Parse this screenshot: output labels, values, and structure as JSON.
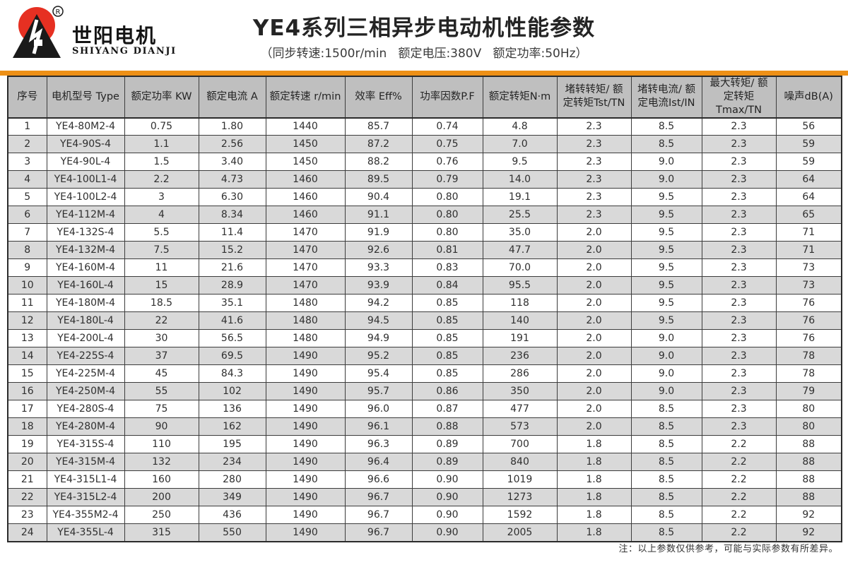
{
  "logo": {
    "cn": "世阳电机",
    "en": "SHIYANG DIANJI",
    "registered": "®"
  },
  "header": {
    "title": "YE4系列三相异步电动机性能参数",
    "subtitle": "（同步转速:1500r/min   额定电压:380V   额定功率:50Hz）"
  },
  "colors": {
    "accent_orange": "#ED9017",
    "logo_red": "#E63022",
    "logo_black": "#1a1a1a",
    "header_gray": "#BFBFBF",
    "stripe_gray": "#D9D9D9"
  },
  "table": {
    "headers": [
      "序号",
      "电机型号 Type",
      "额定功率 KW",
      "额定电流 A",
      "额定转速 r/min",
      "效率 Eff%",
      "功率因数P.F",
      "额定转矩N·m",
      "堵转转矩/ 额\n定转矩Tst/TN",
      "堵转电流/ 额\n定电流Ist/IN",
      "最大转矩/ 额\n定转矩Tmax/TN",
      "噪声dB(A)"
    ],
    "rows": [
      [
        "1",
        "YE4-80M2-4",
        "0.75",
        "1.80",
        "1440",
        "85.7",
        "0.74",
        "4.8",
        "2.3",
        "8.5",
        "2.3",
        "56"
      ],
      [
        "2",
        "YE4-90S-4",
        "1.1",
        "2.56",
        "1450",
        "87.2",
        "0.75",
        "7.0",
        "2.3",
        "8.5",
        "2.3",
        "59"
      ],
      [
        "3",
        "YE4-90L-4",
        "1.5",
        "3.40",
        "1450",
        "88.2",
        "0.76",
        "9.5",
        "2.3",
        "9.0",
        "2.3",
        "59"
      ],
      [
        "4",
        "YE4-100L1-4",
        "2.2",
        "4.73",
        "1460",
        "89.5",
        "0.79",
        "14.0",
        "2.3",
        "9.0",
        "2.3",
        "64"
      ],
      [
        "5",
        "YE4-100L2-4",
        "3",
        "6.30",
        "1460",
        "90.4",
        "0.80",
        "19.1",
        "2.3",
        "9.5",
        "2.3",
        "64"
      ],
      [
        "6",
        "YE4-112M-4",
        "4",
        "8.34",
        "1460",
        "91.1",
        "0.80",
        "25.5",
        "2.3",
        "9.5",
        "2.3",
        "65"
      ],
      [
        "7",
        "YE4-132S-4",
        "5.5",
        "11.4",
        "1470",
        "91.9",
        "0.80",
        "35.0",
        "2.0",
        "9.5",
        "2.3",
        "71"
      ],
      [
        "8",
        "YE4-132M-4",
        "7.5",
        "15.2",
        "1470",
        "92.6",
        "0.81",
        "47.7",
        "2.0",
        "9.5",
        "2.3",
        "71"
      ],
      [
        "9",
        "YE4-160M-4",
        "11",
        "21.6",
        "1470",
        "93.3",
        "0.83",
        "70.0",
        "2.0",
        "9.5",
        "2.3",
        "73"
      ],
      [
        "10",
        "YE4-160L-4",
        "15",
        "28.9",
        "1470",
        "93.9",
        "0.84",
        "95.5",
        "2.0",
        "9.5",
        "2.3",
        "73"
      ],
      [
        "11",
        "YE4-180M-4",
        "18.5",
        "35.1",
        "1480",
        "94.2",
        "0.85",
        "118",
        "2.0",
        "9.5",
        "2.3",
        "76"
      ],
      [
        "12",
        "YE4-180L-4",
        "22",
        "41.6",
        "1480",
        "94.5",
        "0.85",
        "140",
        "2.0",
        "9.5",
        "2.3",
        "76"
      ],
      [
        "13",
        "YE4-200L-4",
        "30",
        "56.5",
        "1480",
        "94.9",
        "0.85",
        "191",
        "2.0",
        "9.0",
        "2.3",
        "76"
      ],
      [
        "14",
        "YE4-225S-4",
        "37",
        "69.5",
        "1490",
        "95.2",
        "0.85",
        "236",
        "2.0",
        "9.0",
        "2.3",
        "78"
      ],
      [
        "15",
        "YE4-225M-4",
        "45",
        "84.3",
        "1490",
        "95.4",
        "0.85",
        "286",
        "2.0",
        "9.0",
        "2.3",
        "78"
      ],
      [
        "16",
        "YE4-250M-4",
        "55",
        "102",
        "1490",
        "95.7",
        "0.86",
        "350",
        "2.0",
        "9.0",
        "2.3",
        "79"
      ],
      [
        "17",
        "YE4-280S-4",
        "75",
        "136",
        "1490",
        "96.0",
        "0.87",
        "477",
        "2.0",
        "8.5",
        "2.3",
        "80"
      ],
      [
        "18",
        "YE4-280M-4",
        "90",
        "162",
        "1490",
        "96.1",
        "0.88",
        "573",
        "2.0",
        "8.5",
        "2.3",
        "80"
      ],
      [
        "19",
        "YE4-315S-4",
        "110",
        "195",
        "1490",
        "96.3",
        "0.89",
        "700",
        "1.8",
        "8.5",
        "2.2",
        "88"
      ],
      [
        "20",
        "YE4-315M-4",
        "132",
        "234",
        "1490",
        "96.4",
        "0.89",
        "840",
        "1.8",
        "8.5",
        "2.2",
        "88"
      ],
      [
        "21",
        "YE4-315L1-4",
        "160",
        "280",
        "1490",
        "96.6",
        "0.90",
        "1019",
        "1.8",
        "8.5",
        "2.2",
        "88"
      ],
      [
        "22",
        "YE4-315L2-4",
        "200",
        "349",
        "1490",
        "96.7",
        "0.90",
        "1273",
        "1.8",
        "8.5",
        "2.2",
        "88"
      ],
      [
        "23",
        "YE4-355M2-4",
        "250",
        "436",
        "1490",
        "96.7",
        "0.90",
        "1592",
        "1.8",
        "8.5",
        "2.2",
        "92"
      ],
      [
        "24",
        "YE4-355L-4",
        "315",
        "550",
        "1490",
        "96.7",
        "0.90",
        "2005",
        "1.8",
        "8.5",
        "2.2",
        "92"
      ]
    ]
  },
  "footer": {
    "note": "注：以上参数仅供参考，可能与实际参数有所差异。"
  }
}
